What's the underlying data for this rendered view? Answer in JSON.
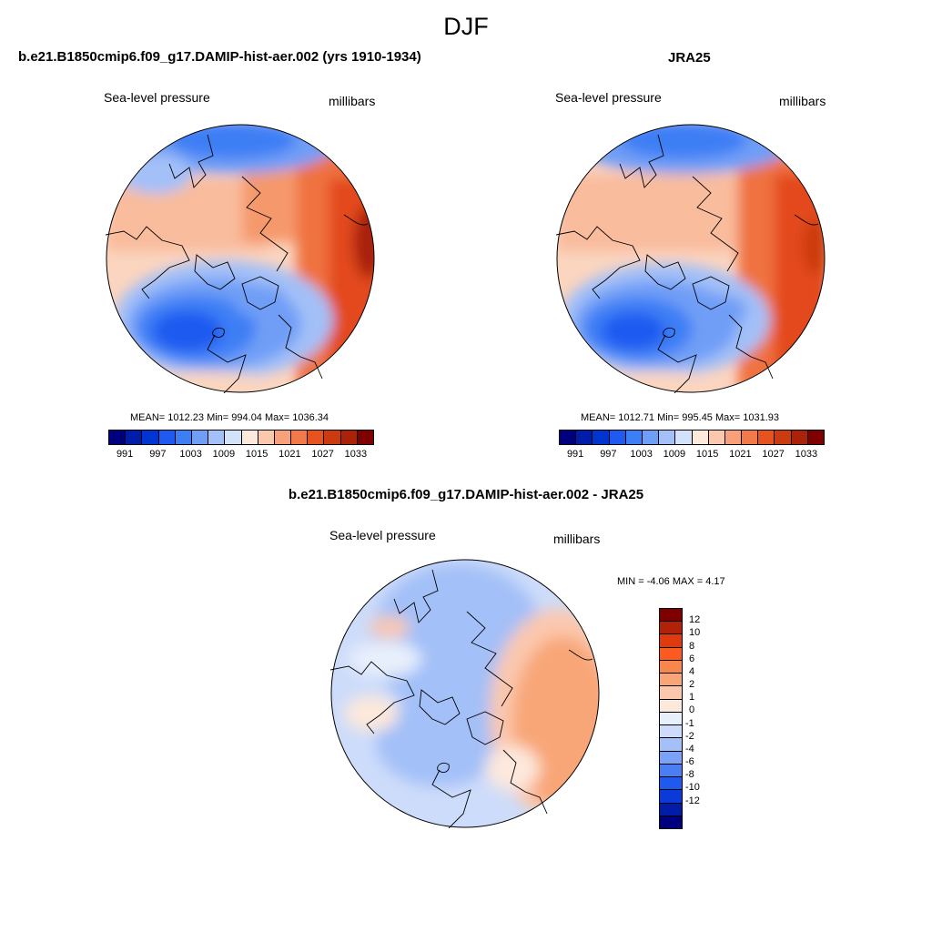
{
  "main_title": "DJF",
  "panel_left": {
    "title": "b.e21.B1850cmip6.f09_g17.DAMIP-hist-aer.002 (yrs 1910-1934)",
    "left_label": "Sea-level pressure",
    "right_label": "millibars",
    "stats": "MEAN= 1012.23  Min= 994.04  Max= 1036.34"
  },
  "panel_right": {
    "title": "JRA25",
    "left_label": "Sea-level pressure",
    "right_label": "millibars",
    "stats": "MEAN= 1012.71  Min= 995.45  Max= 1031.93"
  },
  "panel_diff": {
    "title": "b.e21.B1850cmip6.f09_g17.DAMIP-hist-aer.002 - JRA25",
    "left_label": "Sea-level pressure",
    "right_label": "millibars",
    "stats": "MIN =  -4.06 MAX =   4.17"
  },
  "abs_colorbar": {
    "colors": [
      "#00007f",
      "#001ca9",
      "#0035d2",
      "#1e5af0",
      "#3c7ef5",
      "#6f9ef7",
      "#a3c0f8",
      "#d2e2fb",
      "#fde8dc",
      "#fbc8ae",
      "#f7a07a",
      "#f27a4a",
      "#e8521e",
      "#cc3a10",
      "#aa2208",
      "#7f0000"
    ],
    "ticks": [
      "991",
      "997",
      "1003",
      "1009",
      "1015",
      "1021",
      "1027",
      "1033"
    ]
  },
  "diff_colorbar": {
    "colors": [
      "#7f0000",
      "#b22208",
      "#de3a0e",
      "#fc5a1e",
      "#f9864a",
      "#f8a677",
      "#fbc8ae",
      "#fde8dc",
      "#e8effc",
      "#cddcfa",
      "#a3c0f8",
      "#7aa2f6",
      "#4a7ef3",
      "#1e5af0",
      "#0a3ad8",
      "#001ca9",
      "#00007f"
    ],
    "ticks": [
      "12",
      "10",
      "8",
      "6",
      "4",
      "2",
      "1",
      "0",
      "-1",
      "-2",
      "-4",
      "-6",
      "-8",
      "-10",
      "-12"
    ]
  }
}
